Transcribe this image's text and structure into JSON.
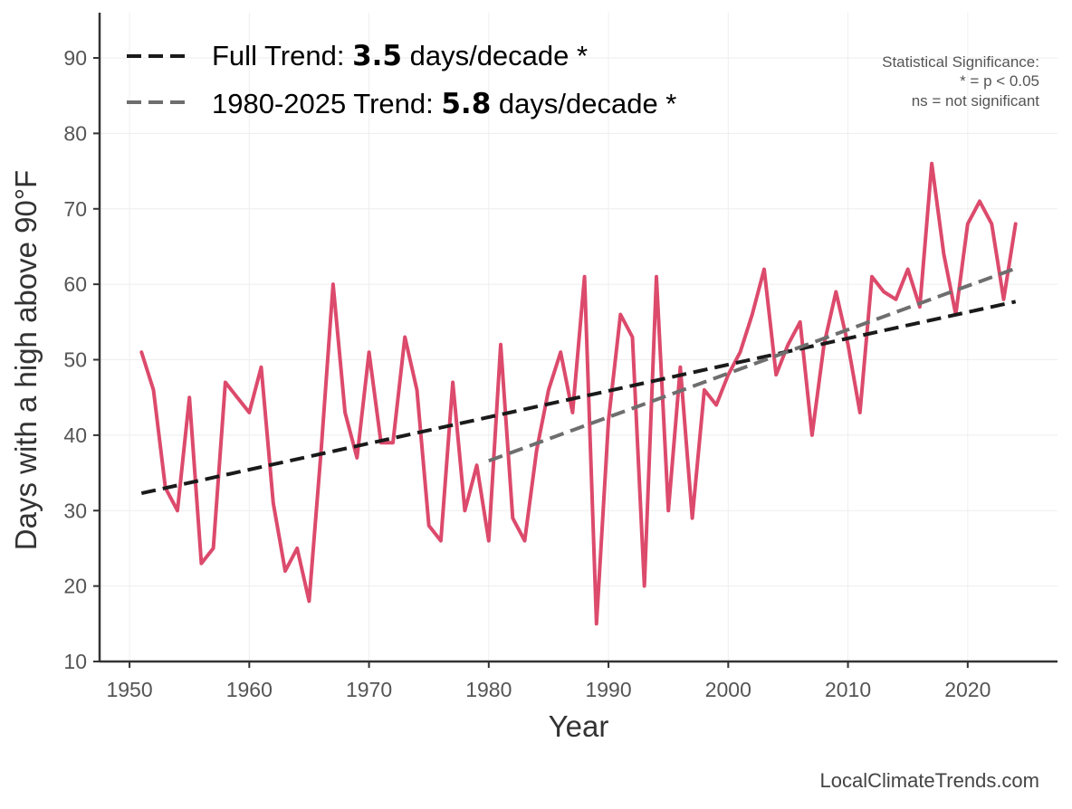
{
  "chart_data": {
    "type": "line",
    "xlabel": "Year",
    "ylabel": "Days with a high above 90°F",
    "xlim": [
      1947.5,
      2027.5
    ],
    "ylim": [
      10,
      96
    ],
    "x_ticks": [
      1950,
      1960,
      1970,
      1980,
      1990,
      2000,
      2010,
      2020
    ],
    "y_ticks": [
      10,
      20,
      30,
      40,
      50,
      60,
      70,
      80,
      90
    ],
    "grid": true,
    "series": [
      {
        "name": "Days with a high above 90°F",
        "color": "#dc4a6c",
        "x": [
          1951,
          1952,
          1953,
          1954,
          1955,
          1956,
          1957,
          1958,
          1959,
          1960,
          1961,
          1962,
          1963,
          1964,
          1965,
          1966,
          1967,
          1968,
          1969,
          1970,
          1971,
          1972,
          1973,
          1974,
          1975,
          1976,
          1977,
          1978,
          1979,
          1980,
          1981,
          1982,
          1983,
          1984,
          1985,
          1986,
          1987,
          1988,
          1989,
          1990,
          1991,
          1992,
          1993,
          1994,
          1995,
          1996,
          1997,
          1998,
          1999,
          2000,
          2001,
          2002,
          2003,
          2004,
          2005,
          2006,
          2007,
          2008,
          2009,
          2010,
          2011,
          2012,
          2013,
          2014,
          2015,
          2016,
          2017,
          2018,
          2019,
          2020,
          2021,
          2022,
          2023,
          2024
        ],
        "values": [
          51,
          46,
          33,
          30,
          45,
          23,
          25,
          47,
          45,
          43,
          49,
          31,
          22,
          25,
          18,
          38,
          60,
          43,
          37,
          51,
          39,
          39,
          53,
          46,
          28,
          26,
          47,
          30,
          36,
          26,
          52,
          29,
          26,
          38,
          46,
          51,
          43,
          61,
          15,
          42,
          56,
          53,
          20,
          61,
          30,
          49,
          29,
          46,
          44,
          48,
          51,
          56,
          62,
          48,
          52,
          55,
          40,
          52,
          59,
          52,
          43,
          61,
          59,
          58,
          62,
          57,
          76,
          64,
          56,
          68,
          71,
          68,
          58,
          68
        ]
      }
    ],
    "trends": [
      {
        "name": "Full Trend",
        "label_prefix": "Full Trend: ",
        "value_text": "3.5",
        "label_suffix": " days/decade *",
        "color": "#1a1a1a",
        "x": [
          1951,
          2024
        ],
        "y": [
          32.3,
          57.7
        ]
      },
      {
        "name": "1980-2025 Trend",
        "label_prefix": "1980-2025 Trend: ",
        "value_text": "5.8",
        "label_suffix": " days/decade *",
        "color": "#6e6e6e",
        "x": [
          1980,
          2024
        ],
        "y": [
          36.6,
          62.1
        ]
      }
    ],
    "annotations": {
      "significance_title": "Statistical Significance:",
      "significance_line1": "* = p < 0.05",
      "significance_line2": "ns = not significant"
    },
    "legend_position": "top-left"
  },
  "footer": {
    "credit": "LocalClimateTrends.com"
  }
}
